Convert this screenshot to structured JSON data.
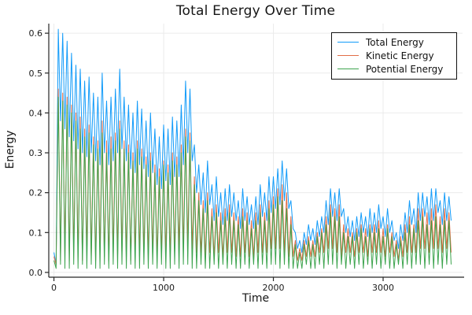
{
  "chart": {
    "title": "Total Energy Over Time",
    "xlabel": "Time",
    "ylabel": "Energy"
  },
  "style": {
    "background": "#ffffff",
    "grid_color": "#ebebeb",
    "axis_color": "#262626",
    "tick_text_color": "#1a1a1a",
    "legend_border_color": "#111111",
    "series_line_width": 1,
    "tick_font_size": 11
  },
  "chart_data": {
    "type": "line",
    "title": "Total Energy Over Time",
    "xlabel": "Time",
    "ylabel": "Energy",
    "xlim": [
      -47,
      3724
    ],
    "ylim": [
      -0.012,
      0.624
    ],
    "xticks": [
      0,
      1000,
      2000,
      3000
    ],
    "xtick_labels": [
      "0",
      "1000",
      "2000",
      "3000"
    ],
    "yticks": [
      0.0,
      0.1,
      0.2,
      0.3,
      0.4,
      0.5,
      0.6
    ],
    "ytick_labels": [
      "0.0",
      "0.1",
      "0.2",
      "0.3",
      "0.4",
      "0.5",
      "0.6"
    ],
    "grid": true,
    "legend_position": "top-right",
    "sampling": {
      "t_start": 0,
      "t_step": 40,
      "trough_offset": 20
    },
    "series": [
      {
        "name": "Total Energy",
        "color": "#129bf9",
        "peaks": [
          0.05,
          0.61,
          0.6,
          0.58,
          0.55,
          0.52,
          0.51,
          0.48,
          0.49,
          0.45,
          0.44,
          0.5,
          0.43,
          0.44,
          0.46,
          0.51,
          0.44,
          0.42,
          0.4,
          0.43,
          0.41,
          0.38,
          0.4,
          0.36,
          0.34,
          0.37,
          0.36,
          0.39,
          0.38,
          0.42,
          0.48,
          0.46,
          0.32,
          0.27,
          0.25,
          0.28,
          0.22,
          0.24,
          0.2,
          0.21,
          0.22,
          0.2,
          0.18,
          0.21,
          0.19,
          0.17,
          0.19,
          0.22,
          0.2,
          0.24,
          0.24,
          0.26,
          0.28,
          0.26,
          0.18,
          0.1,
          0.08,
          0.1,
          0.12,
          0.11,
          0.13,
          0.14,
          0.18,
          0.21,
          0.2,
          0.21,
          0.16,
          0.14,
          0.13,
          0.14,
          0.15,
          0.14,
          0.16,
          0.15,
          0.17,
          0.14,
          0.16,
          0.13,
          0.1,
          0.12,
          0.15,
          0.18,
          0.16,
          0.2,
          0.2,
          0.19,
          0.21,
          0.21,
          0.18,
          0.2,
          0.19
        ],
        "troughs": [
          0.02,
          0.38,
          0.36,
          0.34,
          0.33,
          0.31,
          0.3,
          0.29,
          0.3,
          0.28,
          0.27,
          0.3,
          0.27,
          0.28,
          0.3,
          0.31,
          0.28,
          0.26,
          0.25,
          0.27,
          0.26,
          0.24,
          0.25,
          0.22,
          0.21,
          0.23,
          0.22,
          0.24,
          0.24,
          0.27,
          0.3,
          0.28,
          0.2,
          0.17,
          0.15,
          0.17,
          0.13,
          0.14,
          0.12,
          0.13,
          0.14,
          0.13,
          0.11,
          0.13,
          0.12,
          0.11,
          0.12,
          0.14,
          0.13,
          0.15,
          0.16,
          0.17,
          0.18,
          0.16,
          0.11,
          0.06,
          0.05,
          0.07,
          0.08,
          0.07,
          0.09,
          0.1,
          0.12,
          0.14,
          0.13,
          0.14,
          0.1,
          0.09,
          0.08,
          0.09,
          0.1,
          0.09,
          0.1,
          0.1,
          0.11,
          0.09,
          0.1,
          0.08,
          0.06,
          0.08,
          0.1,
          0.12,
          0.1,
          0.13,
          0.14,
          0.12,
          0.13,
          0.15,
          0.12,
          0.13,
          0.13
        ]
      },
      {
        "name": "Kinetic Energy",
        "color": "#e26e47",
        "peaks": [
          0.04,
          0.46,
          0.45,
          0.44,
          0.42,
          0.4,
          0.39,
          0.36,
          0.37,
          0.34,
          0.33,
          0.38,
          0.33,
          0.34,
          0.35,
          0.38,
          0.33,
          0.32,
          0.3,
          0.33,
          0.31,
          0.29,
          0.3,
          0.27,
          0.26,
          0.28,
          0.27,
          0.3,
          0.29,
          0.32,
          0.36,
          0.35,
          0.24,
          0.2,
          0.18,
          0.2,
          0.16,
          0.17,
          0.15,
          0.16,
          0.17,
          0.15,
          0.14,
          0.16,
          0.15,
          0.13,
          0.15,
          0.17,
          0.15,
          0.18,
          0.19,
          0.21,
          0.22,
          0.2,
          0.14,
          0.08,
          0.06,
          0.08,
          0.09,
          0.08,
          0.1,
          0.11,
          0.14,
          0.17,
          0.16,
          0.17,
          0.12,
          0.11,
          0.1,
          0.11,
          0.12,
          0.11,
          0.12,
          0.12,
          0.13,
          0.11,
          0.12,
          0.1,
          0.08,
          0.09,
          0.12,
          0.14,
          0.12,
          0.16,
          0.16,
          0.15,
          0.16,
          0.17,
          0.14,
          0.16,
          0.15
        ],
        "troughs": [
          0.02,
          0.03,
          0.04,
          0.03,
          0.05,
          0.04,
          0.03,
          0.05,
          0.04,
          0.03,
          0.05,
          0.04,
          0.03,
          0.05,
          0.04,
          0.05,
          0.04,
          0.03,
          0.05,
          0.04,
          0.05,
          0.04,
          0.05,
          0.04,
          0.05,
          0.05,
          0.04,
          0.05,
          0.06,
          0.06,
          0.07,
          0.06,
          0.05,
          0.05,
          0.04,
          0.05,
          0.04,
          0.05,
          0.04,
          0.05,
          0.05,
          0.04,
          0.04,
          0.05,
          0.04,
          0.04,
          0.05,
          0.05,
          0.05,
          0.06,
          0.06,
          0.06,
          0.05,
          0.04,
          0.04,
          0.03,
          0.03,
          0.04,
          0.04,
          0.04,
          0.05,
          0.05,
          0.06,
          0.06,
          0.05,
          0.04,
          0.05,
          0.05,
          0.04,
          0.05,
          0.05,
          0.04,
          0.05,
          0.05,
          0.05,
          0.04,
          0.05,
          0.04,
          0.03,
          0.04,
          0.05,
          0.05,
          0.05,
          0.06,
          0.06,
          0.05,
          0.06,
          0.06,
          0.05,
          0.06,
          0.05
        ]
      },
      {
        "name": "Potential Energy",
        "color": "#3da44e",
        "peaks": [
          0.03,
          0.44,
          0.43,
          0.42,
          0.4,
          0.38,
          0.36,
          0.34,
          0.35,
          0.32,
          0.31,
          0.35,
          0.3,
          0.31,
          0.33,
          0.36,
          0.31,
          0.3,
          0.28,
          0.31,
          0.29,
          0.27,
          0.28,
          0.25,
          0.24,
          0.27,
          0.25,
          0.28,
          0.27,
          0.3,
          0.34,
          0.33,
          0.22,
          0.18,
          0.16,
          0.18,
          0.14,
          0.15,
          0.13,
          0.14,
          0.15,
          0.13,
          0.12,
          0.14,
          0.13,
          0.11,
          0.13,
          0.15,
          0.13,
          0.16,
          0.17,
          0.19,
          0.18,
          0.16,
          0.12,
          0.07,
          0.05,
          0.07,
          0.08,
          0.07,
          0.09,
          0.1,
          0.12,
          0.15,
          0.14,
          0.14,
          0.1,
          0.09,
          0.09,
          0.1,
          0.11,
          0.09,
          0.11,
          0.1,
          0.11,
          0.09,
          0.11,
          0.09,
          0.07,
          0.08,
          0.1,
          0.12,
          0.11,
          0.13,
          0.14,
          0.12,
          0.13,
          0.14,
          0.12,
          0.13,
          0.13
        ],
        "troughs": [
          0.01,
          0.02,
          0.01,
          0.01,
          0.02,
          0.01,
          0.02,
          0.01,
          0.02,
          0.01,
          0.01,
          0.02,
          0.01,
          0.02,
          0.01,
          0.02,
          0.01,
          0.02,
          0.01,
          0.01,
          0.02,
          0.01,
          0.02,
          0.01,
          0.02,
          0.01,
          0.01,
          0.02,
          0.01,
          0.02,
          0.02,
          0.01,
          0.01,
          0.02,
          0.01,
          0.01,
          0.02,
          0.01,
          0.02,
          0.01,
          0.02,
          0.01,
          0.01,
          0.02,
          0.01,
          0.02,
          0.01,
          0.02,
          0.01,
          0.02,
          0.02,
          0.01,
          0.02,
          0.01,
          0.01,
          0.01,
          0.01,
          0.02,
          0.01,
          0.01,
          0.02,
          0.01,
          0.02,
          0.02,
          0.01,
          0.02,
          0.01,
          0.02,
          0.01,
          0.02,
          0.01,
          0.02,
          0.01,
          0.02,
          0.01,
          0.02,
          0.01,
          0.01,
          0.02,
          0.01,
          0.02,
          0.01,
          0.02,
          0.02,
          0.01,
          0.02,
          0.01,
          0.02,
          0.01,
          0.02,
          0.02
        ]
      }
    ]
  }
}
